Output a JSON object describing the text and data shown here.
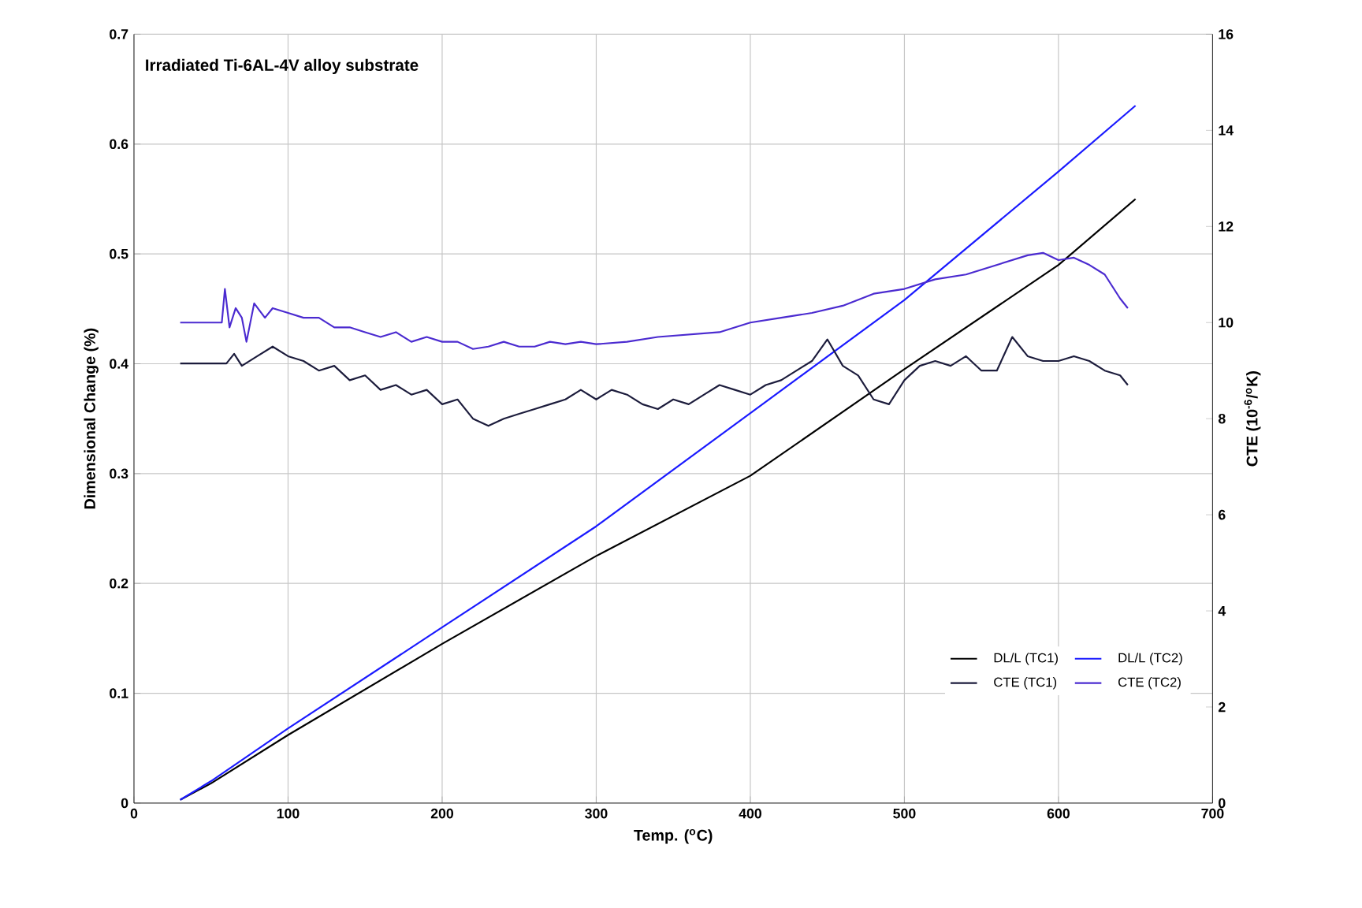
{
  "chart_data": {
    "type": "line",
    "title": "Irradiated Ti-6AL-4V alloy substrate",
    "xlabel": "Temp. ($^{o}$C)",
    "ylabel": "Dimensional Change (%)",
    "y2label": "CTE (10$^{-6}$/$^{o}$K)",
    "xlim": [
      0,
      700
    ],
    "xticks": [
      0,
      100,
      200,
      300,
      400,
      500,
      600,
      700
    ],
    "ylim": [
      0,
      0.7
    ],
    "yticks": [
      0,
      0.1,
      0.2,
      0.3,
      0.4,
      0.5,
      0.6,
      0.7
    ],
    "y2lim": [
      0,
      16
    ],
    "y2ticks": [
      0,
      2,
      4,
      6,
      8,
      10,
      12,
      14,
      16
    ],
    "grid": true,
    "legend": "bottom right",
    "marker": "none",
    "line_style": "solid",
    "series": [
      {
        "name": "DL/L (TC1)",
        "color": "#000000",
        "x": [
          30,
          50,
          100,
          200,
          300,
          400,
          500,
          600,
          650
        ],
        "values": [
          0.003,
          0.018,
          0.062,
          0.145,
          0.225,
          0.298,
          0.395,
          0.49,
          0.55
        ]
      },
      {
        "name": "DL/L (TC2)",
        "color": "#1a1aff",
        "x": [
          30,
          50,
          100,
          200,
          300,
          400,
          500,
          600,
          650
        ],
        "values": [
          0.003,
          0.02,
          0.068,
          0.16,
          0.252,
          0.355,
          0.458,
          0.575,
          0.635
        ]
      },
      {
        "name": "CTE (TC1)",
        "color": "#1c1c3c",
        "axis": "y2",
        "x": [
          30,
          60,
          65,
          70,
          80,
          90,
          100,
          110,
          120,
          130,
          140,
          150,
          160,
          170,
          180,
          190,
          200,
          210,
          220,
          230,
          240,
          250,
          260,
          270,
          280,
          290,
          300,
          310,
          320,
          330,
          340,
          350,
          360,
          370,
          380,
          390,
          400,
          410,
          420,
          430,
          440,
          450,
          460,
          470,
          480,
          490,
          500,
          510,
          520,
          530,
          540,
          550,
          560,
          570,
          580,
          590,
          600,
          610,
          620,
          630,
          640,
          645
        ],
        "values": [
          9.15,
          9.15,
          9.35,
          9.1,
          9.3,
          9.5,
          9.3,
          9.2,
          9.0,
          9.1,
          8.8,
          8.9,
          8.6,
          8.7,
          8.5,
          8.6,
          8.3,
          8.4,
          8.0,
          7.85,
          8.0,
          8.1,
          8.2,
          8.3,
          8.4,
          8.6,
          8.4,
          8.6,
          8.5,
          8.3,
          8.2,
          8.4,
          8.3,
          8.5,
          8.7,
          8.6,
          8.5,
          8.7,
          8.8,
          9.0,
          9.2,
          9.65,
          9.1,
          8.9,
          8.4,
          8.3,
          8.8,
          9.1,
          9.2,
          9.1,
          9.3,
          9.0,
          9.0,
          9.7,
          9.3,
          9.2,
          9.2,
          9.3,
          9.2,
          9.0,
          8.9,
          8.7
        ]
      },
      {
        "name": "CTE (TC2)",
        "color": "#4b2bd0",
        "axis": "y2",
        "x": [
          30,
          57,
          59,
          62,
          66,
          70,
          73,
          78,
          85,
          90,
          100,
          110,
          120,
          130,
          140,
          150,
          160,
          170,
          180,
          190,
          200,
          210,
          220,
          230,
          240,
          250,
          260,
          270,
          280,
          290,
          300,
          320,
          340,
          360,
          380,
          400,
          420,
          440,
          460,
          480,
          500,
          520,
          540,
          560,
          580,
          590,
          600,
          610,
          620,
          630,
          640,
          645
        ],
        "values": [
          10.0,
          10.0,
          10.7,
          9.9,
          10.3,
          10.1,
          9.6,
          10.4,
          10.1,
          10.3,
          10.2,
          10.1,
          10.1,
          9.9,
          9.9,
          9.8,
          9.7,
          9.8,
          9.6,
          9.7,
          9.6,
          9.6,
          9.45,
          9.5,
          9.6,
          9.5,
          9.5,
          9.6,
          9.55,
          9.6,
          9.55,
          9.6,
          9.7,
          9.75,
          9.8,
          10.0,
          10.1,
          10.2,
          10.35,
          10.6,
          10.7,
          10.9,
          11.0,
          11.2,
          11.4,
          11.45,
          11.3,
          11.35,
          11.2,
          11.0,
          10.5,
          10.3
        ]
      }
    ]
  }
}
